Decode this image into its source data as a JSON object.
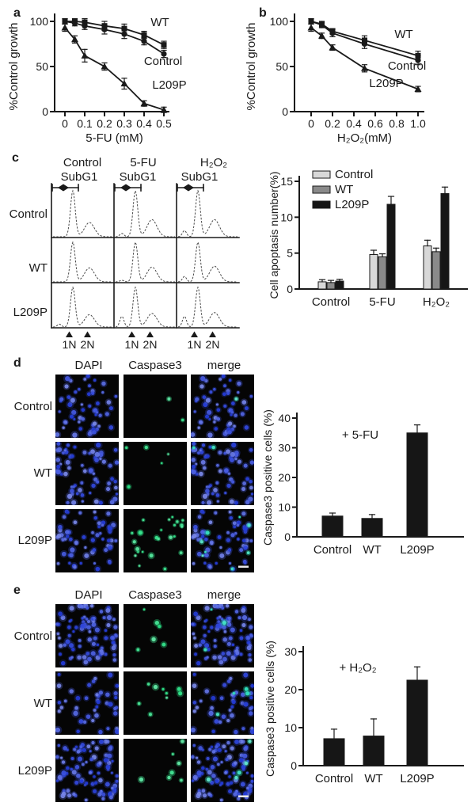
{
  "panels": {
    "a": {
      "label": "a"
    },
    "b": {
      "label": "b"
    },
    "c": {
      "label": "c"
    },
    "d": {
      "label": "d"
    },
    "e": {
      "label": "e"
    }
  },
  "colors": {
    "axis": "#1a1a1a",
    "bar_control": "#d8d8d8",
    "bar_wt": "#8a8a8a",
    "bar_l209p": "#161616",
    "dapi_blue": "#2a3fd0",
    "caspase_green": "#2ec46e",
    "image_background": "#050505"
  },
  "chart_data": [
    {
      "id": "a_line",
      "type": "line",
      "xlabel": "5-FU (mM)",
      "ylabel": "%Control growth",
      "x": [
        0,
        0.05,
        0.1,
        0.2,
        0.3,
        0.4,
        0.5
      ],
      "xticks": [
        0,
        0.1,
        0.2,
        0.3,
        0.4,
        0.5
      ],
      "xtick_labels": [
        "0",
        "0.1",
        "0.2",
        "0.3",
        "0.4",
        "0.5"
      ],
      "yticks": [
        0,
        50,
        100
      ],
      "ylim": [
        0,
        105
      ],
      "series": [
        {
          "name": "WT",
          "marker": "square",
          "values": [
            100,
            100,
            99,
            95,
            92,
            85,
            74
          ],
          "errors": [
            3,
            3,
            4,
            5,
            5,
            4,
            4
          ]
        },
        {
          "name": "Control",
          "marker": "circle",
          "values": [
            100,
            98,
            95,
            91,
            86,
            78,
            64
          ],
          "errors": [
            3,
            3,
            4,
            5,
            5,
            4,
            4
          ]
        },
        {
          "name": "L209P",
          "marker": "triangle",
          "values": [
            93,
            80,
            62,
            50,
            31,
            9,
            2
          ],
          "errors": [
            4,
            4,
            7,
            4,
            6,
            3,
            3
          ]
        }
      ]
    },
    {
      "id": "b_line",
      "type": "line",
      "xlabel": "H₂O₂(mM)",
      "ylabel": "%Control growth",
      "x": [
        0,
        0.1,
        0.2,
        0.5,
        1.0
      ],
      "xticks": [
        0,
        0.2,
        0.4,
        0.6,
        0.8,
        1.0
      ],
      "xtick_labels": [
        "0",
        "0.2",
        "0.4",
        "0.6",
        "0.8",
        "1.0"
      ],
      "yticks": [
        0,
        50,
        100
      ],
      "ylim": [
        0,
        105
      ],
      "series": [
        {
          "name": "WT",
          "marker": "square",
          "values": [
            100,
            97,
            89,
            79,
            62
          ],
          "errors": [
            3,
            3,
            3,
            5,
            5
          ]
        },
        {
          "name": "Control",
          "marker": "circle",
          "values": [
            100,
            96,
            87,
            75,
            57
          ],
          "errors": [
            3,
            3,
            4,
            5,
            5
          ]
        },
        {
          "name": "L209P",
          "marker": "triangle",
          "values": [
            93,
            84,
            71,
            48,
            25
          ],
          "errors": [
            4,
            3,
            3,
            4,
            3
          ]
        }
      ]
    },
    {
      "id": "c_flow",
      "type": "flow-histogram-grid",
      "columns": [
        "Control",
        "5-FU",
        "H₂O₂"
      ],
      "rows": [
        "Control",
        "WT",
        "L209P"
      ],
      "gate_label": "SubG1",
      "axis_markers": [
        "1N",
        "2N"
      ],
      "subg1_fraction": [
        [
          0,
          0.07,
          0.13
        ],
        [
          0,
          0.04,
          0.13
        ],
        [
          0.07,
          0.26,
          0.26
        ]
      ],
      "g2_peak_fraction": [
        [
          0.3,
          0.36,
          0.36
        ],
        [
          0.34,
          0.36,
          0.38
        ],
        [
          0.3,
          0.33,
          0.35
        ]
      ]
    },
    {
      "id": "c_bars",
      "type": "bar",
      "grouped": true,
      "ylabel": "Cell apoptasis number(%)",
      "categories": [
        "Control",
        "5-FU",
        "H₂O₂"
      ],
      "yticks": [
        0,
        5,
        10,
        15
      ],
      "ylim": [
        0,
        15
      ],
      "legend_position": "top-left",
      "series": [
        {
          "name": "Control",
          "color": "#d8d8d8",
          "values": [
            1.0,
            4.8,
            6.0
          ],
          "errors": [
            0.3,
            0.6,
            0.8
          ]
        },
        {
          "name": "WT",
          "color": "#8a8a8a",
          "values": [
            0.9,
            4.5,
            5.2
          ],
          "errors": [
            0.3,
            0.4,
            0.5
          ]
        },
        {
          "name": "L209P",
          "color": "#161616",
          "values": [
            1.1,
            11.8,
            13.3
          ],
          "errors": [
            0.25,
            1.1,
            0.9
          ]
        }
      ]
    },
    {
      "id": "d_bars",
      "type": "bar",
      "grouped": false,
      "ylabel": "Caspase3 positive cells (%)",
      "annotation": "+ 5-FU",
      "categories": [
        "Control",
        "WT",
        "L209P"
      ],
      "yticks": [
        0,
        10,
        20,
        30,
        40
      ],
      "ylim": [
        0,
        40
      ],
      "bar_color": "#161616",
      "values": [
        7,
        6.2,
        35
      ],
      "errors": [
        1.0,
        1.3,
        2.7
      ]
    },
    {
      "id": "e_bars",
      "type": "bar",
      "grouped": false,
      "ylabel": "Caspase3 positive cells (%)",
      "annotation": "+ H₂O₂",
      "categories": [
        "Control",
        "WT",
        "L209P"
      ],
      "yticks": [
        0,
        10,
        20,
        30
      ],
      "ylim": [
        0,
        30
      ],
      "bar_color": "#161616",
      "values": [
        7.1,
        7.8,
        22.5
      ],
      "errors": [
        2.5,
        4.5,
        3.5
      ]
    }
  ],
  "microscopy": {
    "d": {
      "columns": [
        "DAPI",
        "Caspase3",
        "merge"
      ],
      "rows": [
        {
          "label": "Control",
          "nuclei": 55,
          "caspase_dots": 2,
          "merge_green_dots": 1
        },
        {
          "label": "WT",
          "nuclei": 68,
          "caspase_dots": 5,
          "merge_green_dots": 2
        },
        {
          "label": "L209P",
          "nuclei": 60,
          "caspase_dots": 26,
          "merge_green_dots": 8,
          "scale_bar": true
        }
      ]
    },
    "e": {
      "columns": [
        "DAPI",
        "Caspase3",
        "merge"
      ],
      "rows": [
        {
          "label": "Control",
          "nuclei": 85,
          "caspase_dots": 6,
          "merge_green_dots": 3
        },
        {
          "label": "WT",
          "nuclei": 42,
          "caspase_dots": 9,
          "merge_green_dots": 4
        },
        {
          "label": "L209P",
          "nuclei": 88,
          "caspase_dots": 7,
          "merge_green_dots": 5,
          "scale_bar": true
        }
      ]
    }
  }
}
